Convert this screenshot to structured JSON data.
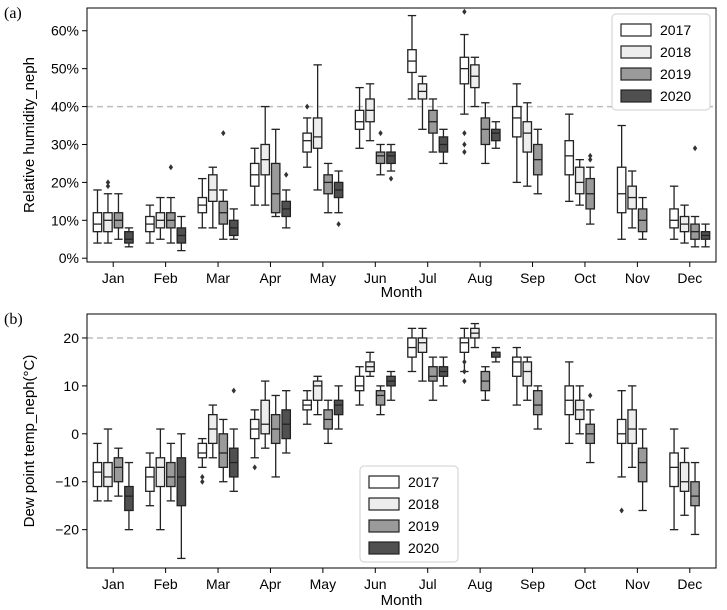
{
  "chart_data": [
    {
      "panel_label": "(a)",
      "type": "box",
      "title": "",
      "xlabel": "Month",
      "ylabel": "Relative humidity_neph",
      "categories": [
        "Jan",
        "Feb",
        "Mar",
        "Apr",
        "May",
        "Jun",
        "Jul",
        "Aug",
        "Sep",
        "Oct",
        "Nov",
        "Dec"
      ],
      "y_ticks": [
        0,
        10,
        20,
        30,
        40,
        50,
        60
      ],
      "y_tick_labels": [
        "0%",
        "10%",
        "20%",
        "30%",
        "40%",
        "50%",
        "60%"
      ],
      "ylim": [
        -1,
        66
      ],
      "reference_line": 40,
      "legend_position": "top-right",
      "series": [
        {
          "name": "2017",
          "color": "#ffffff",
          "boxes": [
            {
              "q1": 7,
              "median": 9,
              "q3": 12,
              "low": 4,
              "high": 18,
              "outliers": []
            },
            {
              "q1": 7,
              "median": 9,
              "q3": 11,
              "low": 4,
              "high": 14,
              "outliers": []
            },
            {
              "q1": 12,
              "median": 14,
              "q3": 16,
              "low": 8,
              "high": 21,
              "outliers": []
            },
            {
              "q1": 19,
              "median": 22,
              "q3": 25,
              "low": 14,
              "high": 29,
              "outliers": []
            },
            {
              "q1": 28,
              "median": 31,
              "q3": 33,
              "low": 24,
              "high": 37,
              "outliers": [
                40
              ]
            },
            {
              "q1": 34,
              "median": 36,
              "q3": 39,
              "low": 29,
              "high": 45,
              "outliers": []
            },
            {
              "q1": 49,
              "median": 52,
              "q3": 55,
              "low": 42,
              "high": 64,
              "outliers": []
            },
            {
              "q1": 46,
              "median": 50,
              "q3": 53,
              "low": 38,
              "high": 59,
              "outliers": [
                65,
                33,
                30,
                28
              ]
            },
            {
              "q1": 32,
              "median": 37,
              "q3": 40,
              "low": 20,
              "high": 46,
              "outliers": []
            },
            {
              "q1": 22,
              "median": 27,
              "q3": 31,
              "low": 15,
              "high": 38,
              "outliers": []
            },
            {
              "q1": 12,
              "median": 17,
              "q3": 24,
              "low": 5,
              "high": 35,
              "outliers": []
            },
            {
              "q1": 8,
              "median": 10,
              "q3": 13,
              "low": 5,
              "high": 19,
              "outliers": []
            }
          ]
        },
        {
          "name": "2018",
          "color": "#ededed",
          "boxes": [
            {
              "q1": 7,
              "median": 10,
              "q3": 12,
              "low": 4,
              "high": 17,
              "outliers": [
                19,
                20
              ]
            },
            {
              "q1": 8,
              "median": 10,
              "q3": 12,
              "low": 5,
              "high": 16,
              "outliers": []
            },
            {
              "q1": 15,
              "median": 18,
              "q3": 22,
              "low": 8,
              "high": 24,
              "outliers": []
            },
            {
              "q1": 22,
              "median": 26,
              "q3": 30,
              "low": 14,
              "high": 40,
              "outliers": []
            },
            {
              "q1": 29,
              "median": 32,
              "q3": 37,
              "low": 18,
              "high": 51,
              "outliers": []
            },
            {
              "q1": 36,
              "median": 39,
              "q3": 42,
              "low": 31,
              "high": 46,
              "outliers": []
            },
            {
              "q1": 42,
              "median": 44,
              "q3": 46,
              "low": 34,
              "high": 48,
              "outliers": []
            },
            {
              "q1": 45,
              "median": 48,
              "q3": 51,
              "low": 40,
              "high": 53,
              "outliers": []
            },
            {
              "q1": 28,
              "median": 33,
              "q3": 36,
              "low": 19,
              "high": 41,
              "outliers": []
            },
            {
              "q1": 17,
              "median": 20,
              "q3": 24,
              "low": 14,
              "high": 26,
              "outliers": []
            },
            {
              "q1": 13,
              "median": 16,
              "q3": 19,
              "low": 8,
              "high": 23,
              "outliers": []
            },
            {
              "q1": 7,
              "median": 9,
              "q3": 11,
              "low": 4,
              "high": 14,
              "outliers": []
            }
          ]
        },
        {
          "name": "2019",
          "color": "#9a9a9a",
          "boxes": [
            {
              "q1": 8,
              "median": 10,
              "q3": 12,
              "low": 5,
              "high": 17,
              "outliers": []
            },
            {
              "q1": 8,
              "median": 10,
              "q3": 12,
              "low": 4,
              "high": 16,
              "outliers": [
                24
              ]
            },
            {
              "q1": 9,
              "median": 12,
              "q3": 15,
              "low": 5,
              "high": 18,
              "outliers": [
                33
              ]
            },
            {
              "q1": 12,
              "median": 17,
              "q3": 25,
              "low": 11,
              "high": 34,
              "outliers": []
            },
            {
              "q1": 17,
              "median": 20,
              "q3": 22,
              "low": 12,
              "high": 25,
              "outliers": []
            },
            {
              "q1": 25,
              "median": 27,
              "q3": 28,
              "low": 22,
              "high": 30,
              "outliers": [
                33
              ]
            },
            {
              "q1": 33,
              "median": 36,
              "q3": 39,
              "low": 28,
              "high": 42,
              "outliers": []
            },
            {
              "q1": 30,
              "median": 34,
              "q3": 37,
              "low": 25,
              "high": 41,
              "outliers": []
            },
            {
              "q1": 22,
              "median": 26,
              "q3": 30,
              "low": 17,
              "high": 34,
              "outliers": []
            },
            {
              "q1": 13,
              "median": 17,
              "q3": 21,
              "low": 9,
              "high": 24,
              "outliers": [
                26,
                27
              ]
            },
            {
              "q1": 7,
              "median": 10,
              "q3": 13,
              "low": 5,
              "high": 16,
              "outliers": []
            },
            {
              "q1": 5,
              "median": 7,
              "q3": 9,
              "low": 3,
              "high": 11,
              "outliers": [
                29
              ]
            }
          ]
        },
        {
          "name": "2020",
          "color": "#505050",
          "boxes": [
            {
              "q1": 4,
              "median": 5,
              "q3": 7,
              "low": 3,
              "high": 8,
              "outliers": []
            },
            {
              "q1": 4,
              "median": 6,
              "q3": 8,
              "low": 2,
              "high": 11,
              "outliers": []
            },
            {
              "q1": 6,
              "median": 8,
              "q3": 10,
              "low": 5,
              "high": 13,
              "outliers": []
            },
            {
              "q1": 11,
              "median": 13,
              "q3": 15,
              "low": 8,
              "high": 18,
              "outliers": [
                22
              ]
            },
            {
              "q1": 16,
              "median": 18,
              "q3": 20,
              "low": 12,
              "high": 23,
              "outliers": [
                9
              ]
            },
            {
              "q1": 25,
              "median": 27,
              "q3": 28,
              "low": 23,
              "high": 30,
              "outliers": [
                21
              ]
            },
            {
              "q1": 28,
              "median": 30,
              "q3": 32,
              "low": 25,
              "high": 34,
              "outliers": []
            },
            {
              "q1": 31,
              "median": 33,
              "q3": 34,
              "low": 29,
              "high": 36,
              "outliers": []
            },
            null,
            null,
            null,
            {
              "q1": 5,
              "median": 6,
              "q3": 7,
              "low": 3,
              "high": 9,
              "outliers": []
            }
          ]
        }
      ]
    },
    {
      "panel_label": "(b)",
      "type": "box",
      "title": "",
      "xlabel": "Month",
      "ylabel": "Dew point temp_neph(°C)",
      "categories": [
        "Jan",
        "Feb",
        "Mar",
        "Apr",
        "May",
        "Jun",
        "Jul",
        "Aug",
        "Sep",
        "Oct",
        "Nov",
        "Dec"
      ],
      "y_ticks": [
        -20,
        -10,
        0,
        10,
        20
      ],
      "y_tick_labels": [
        "−20",
        "−10",
        "0",
        "10",
        "20"
      ],
      "ylim": [
        -28,
        25
      ],
      "reference_line": 20,
      "legend_position": "bottom-left",
      "series": [
        {
          "name": "2017",
          "color": "#ffffff",
          "boxes": [
            {
              "q1": -11,
              "median": -8,
              "q3": -6,
              "low": -14,
              "high": -2,
              "outliers": []
            },
            {
              "q1": -12,
              "median": -9,
              "q3": -7,
              "low": -15,
              "high": -4,
              "outliers": []
            },
            {
              "q1": -5,
              "median": -4,
              "q3": -2,
              "low": -7,
              "high": -1,
              "outliers": [
                -9,
                -10
              ]
            },
            {
              "q1": -1,
              "median": 1,
              "q3": 3,
              "low": -5,
              "high": 5,
              "outliers": [
                -7
              ]
            },
            {
              "q1": 5,
              "median": 6,
              "q3": 7,
              "low": 2,
              "high": 9,
              "outliers": []
            },
            {
              "q1": 9,
              "median": 10,
              "q3": 12,
              "low": 6,
              "high": 14,
              "outliers": []
            },
            {
              "q1": 16,
              "median": 18,
              "q3": 20,
              "low": 13,
              "high": 22,
              "outliers": []
            },
            {
              "q1": 17,
              "median": 19,
              "q3": 20,
              "low": 13,
              "high": 22,
              "outliers": [
                15,
                13,
                11
              ]
            },
            {
              "q1": 12,
              "median": 15,
              "q3": 16,
              "low": 6,
              "high": 18,
              "outliers": []
            },
            {
              "q1": 4,
              "median": 7,
              "q3": 10,
              "low": -2,
              "high": 15,
              "outliers": []
            },
            {
              "q1": -2,
              "median": 0,
              "q3": 3,
              "low": -9,
              "high": 9,
              "outliers": [
                -16
              ]
            },
            {
              "q1": -11,
              "median": -7,
              "q3": -4,
              "low": -20,
              "high": 1,
              "outliers": []
            }
          ]
        },
        {
          "name": "2018",
          "color": "#ededed",
          "boxes": [
            {
              "q1": -11,
              "median": -9,
              "q3": -6,
              "low": -14,
              "high": 1,
              "outliers": []
            },
            {
              "q1": -11,
              "median": -7,
              "q3": -5,
              "low": -20,
              "high": 1,
              "outliers": []
            },
            {
              "q1": -2,
              "median": 1,
              "q3": 4,
              "low": -5,
              "high": 6,
              "outliers": []
            },
            {
              "q1": 0,
              "median": 2,
              "q3": 7,
              "low": -3,
              "high": 11,
              "outliers": []
            },
            {
              "q1": 7,
              "median": 10,
              "q3": 11,
              "low": 4,
              "high": 12,
              "outliers": []
            },
            {
              "q1": 13,
              "median": 14,
              "q3": 15,
              "low": 12,
              "high": 17,
              "outliers": []
            },
            {
              "q1": 17,
              "median": 19,
              "q3": 20,
              "low": 11,
              "high": 22,
              "outliers": []
            },
            {
              "q1": 20,
              "median": 21,
              "q3": 22,
              "low": 18,
              "high": 23,
              "outliers": []
            },
            {
              "q1": 10,
              "median": 13,
              "q3": 15,
              "low": 7,
              "high": 16,
              "outliers": []
            },
            {
              "q1": 3,
              "median": 5,
              "q3": 7,
              "low": 0,
              "high": 10,
              "outliers": []
            },
            {
              "q1": -2,
              "median": 1,
              "q3": 5,
              "low": -7,
              "high": 10,
              "outliers": []
            },
            {
              "q1": -12,
              "median": -10,
              "q3": -6,
              "low": -17,
              "high": -3,
              "outliers": []
            }
          ]
        },
        {
          "name": "2019",
          "color": "#9a9a9a",
          "boxes": [
            {
              "q1": -10,
              "median": -7,
              "q3": -5,
              "low": -13,
              "high": -3,
              "outliers": []
            },
            {
              "q1": -11,
              "median": -9,
              "q3": -6,
              "low": -14,
              "high": -2,
              "outliers": []
            },
            {
              "q1": -7,
              "median": -4,
              "q3": 0,
              "low": -10,
              "high": 3,
              "outliers": []
            },
            {
              "q1": -2,
              "median": 1,
              "q3": 4,
              "low": -9,
              "high": 8,
              "outliers": []
            },
            {
              "q1": 1,
              "median": 3,
              "q3": 5,
              "low": -2,
              "high": 7,
              "outliers": []
            },
            {
              "q1": 6,
              "median": 8,
              "q3": 9,
              "low": 4,
              "high": 10,
              "outliers": []
            },
            {
              "q1": 11,
              "median": 12,
              "q3": 14,
              "low": 7,
              "high": 16,
              "outliers": []
            },
            {
              "q1": 9,
              "median": 11,
              "q3": 13,
              "low": 7,
              "high": 14,
              "outliers": []
            },
            {
              "q1": 4,
              "median": 6,
              "q3": 9,
              "low": 1,
              "high": 10,
              "outliers": []
            },
            {
              "q1": -2,
              "median": 0,
              "q3": 2,
              "low": -6,
              "high": 5,
              "outliers": [
                8
              ]
            },
            {
              "q1": -10,
              "median": -6,
              "q3": -3,
              "low": -16,
              "high": 1,
              "outliers": []
            },
            {
              "q1": -15,
              "median": -13,
              "q3": -10,
              "low": -21,
              "high": -6,
              "outliers": []
            }
          ]
        },
        {
          "name": "2020",
          "color": "#505050",
          "boxes": [
            {
              "q1": -16,
              "median": -13,
              "q3": -11,
              "low": -20,
              "high": -6,
              "outliers": []
            },
            {
              "q1": -15,
              "median": -9,
              "q3": -5,
              "low": -26,
              "high": 0,
              "outliers": []
            },
            {
              "q1": -9,
              "median": -6,
              "q3": -3,
              "low": -12,
              "high": 1,
              "outliers": [
                9
              ]
            },
            {
              "q1": -1,
              "median": 2,
              "q3": 5,
              "low": -4,
              "high": 9,
              "outliers": []
            },
            {
              "q1": 4,
              "median": 6,
              "q3": 7,
              "low": 1,
              "high": 10,
              "outliers": []
            },
            {
              "q1": 10,
              "median": 11,
              "q3": 12,
              "low": 7,
              "high": 13,
              "outliers": []
            },
            {
              "q1": 12,
              "median": 13,
              "q3": 14,
              "low": 10,
              "high": 16,
              "outliers": []
            },
            {
              "q1": 16,
              "median": 17,
              "q3": 17,
              "low": 15,
              "high": 18,
              "outliers": []
            },
            null,
            null,
            null,
            null
          ]
        }
      ]
    }
  ]
}
